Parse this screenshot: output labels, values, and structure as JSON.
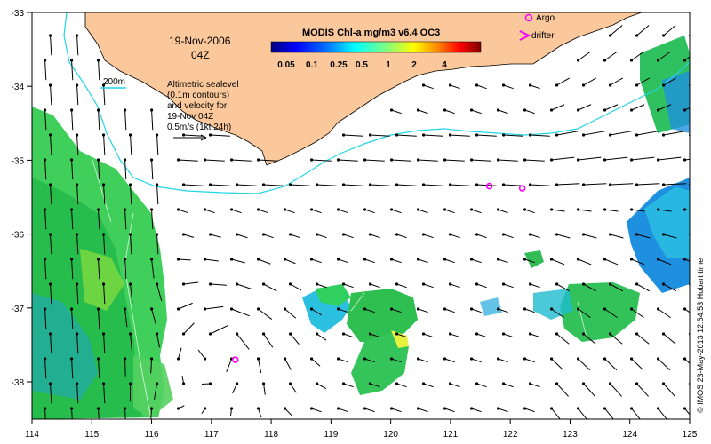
{
  "map": {
    "date_line1": "19-Nov-2006",
    "date_line2": "04Z",
    "isobath_label": "200m",
    "legend_text": [
      "Altimetric sealevel",
      "(0.1m contours)",
      "and velocity for",
      "19-Nov 04Z",
      "0.5m/s (1kt 24h)"
    ],
    "colorbar": {
      "title": "MODIS Chl-a mg/m3 v6.4 OC3",
      "ticks": [
        "0.05",
        "0.1",
        "0.25",
        "0.5",
        "1",
        "2",
        "4"
      ],
      "colors": [
        "#00007f",
        "#0000ff",
        "#0080ff",
        "#00ffff",
        "#80ff80",
        "#ffff00",
        "#ff8000",
        "#ff0000",
        "#7f0000"
      ]
    },
    "markers": {
      "argo_label": "Argo",
      "drifter_label": "drifter",
      "argo_color": "#ff00ff"
    },
    "argo_floats": [
      {
        "lon": 121.65,
        "lat": -35.35
      },
      {
        "lon": 122.2,
        "lat": -35.38
      },
      {
        "lon": 117.4,
        "lat": -37.7
      }
    ],
    "lon_ticks": [
      "114",
      "115",
      "116",
      "117",
      "118",
      "119",
      "120",
      "121",
      "122",
      "123",
      "124",
      "125"
    ],
    "lat_ticks": [
      "-33",
      "-34",
      "-35",
      "-36",
      "-37",
      "-38"
    ],
    "credit": "© IMOS 23-May-2013 12:54:53 Hobart time",
    "colors": {
      "land": "#fbc89b",
      "isobath": "#22d4e6",
      "arrow": "#000000"
    }
  }
}
